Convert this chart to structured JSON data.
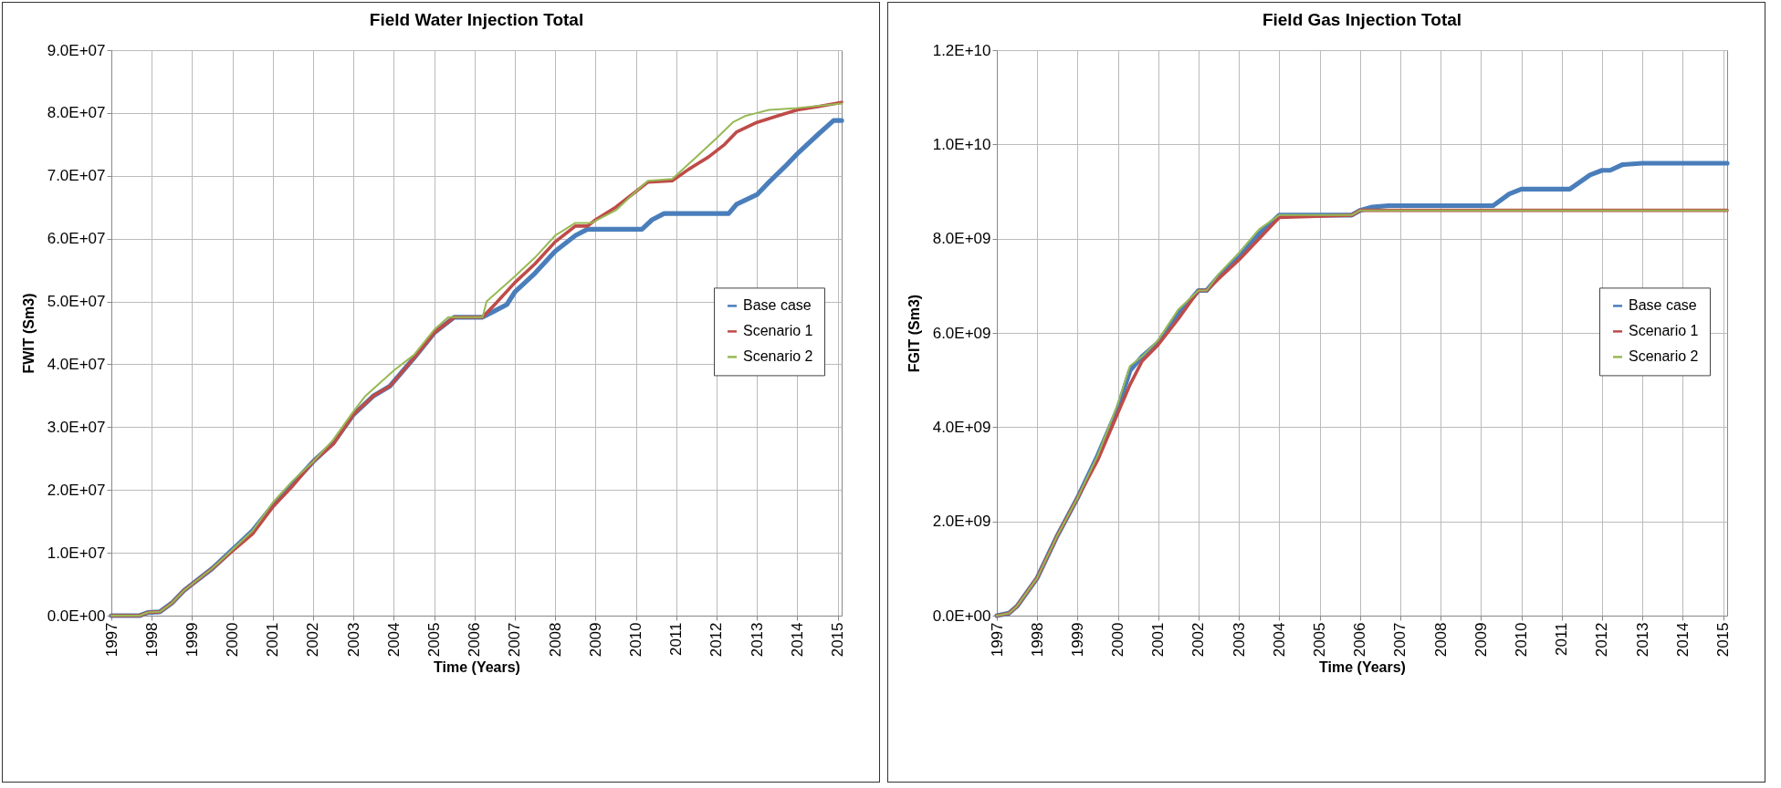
{
  "chart_data": [
    {
      "type": "line",
      "title": "Field Water Injection Total",
      "xlabel": "Time (Years)",
      "ylabel": "FWIT (Sm3)",
      "xlim": [
        1997,
        2015.1
      ],
      "xticks": [
        1997,
        1998,
        1999,
        2000,
        2001,
        2002,
        2003,
        2004,
        2005,
        2006,
        2007,
        2008,
        2009,
        2010,
        2011,
        2012,
        2013,
        2014,
        2015
      ],
      "ylim": [
        0,
        90000000
      ],
      "yticks": [
        {
          "value": 0,
          "label": "0.0E+00"
        },
        {
          "value": 10000000,
          "label": "1.0E+07"
        },
        {
          "value": 20000000,
          "label": "2.0E+07"
        },
        {
          "value": 30000000,
          "label": "3.0E+07"
        },
        {
          "value": 40000000,
          "label": "4.0E+07"
        },
        {
          "value": 50000000,
          "label": "5.0E+07"
        },
        {
          "value": 60000000,
          "label": "6.0E+07"
        },
        {
          "value": 70000000,
          "label": "7.0E+07"
        },
        {
          "value": 80000000,
          "label": "8.0E+07"
        },
        {
          "value": 90000000,
          "label": "9.0E+07"
        }
      ],
      "grid": true,
      "legend": "right",
      "series": [
        {
          "name": "Base case",
          "color": "#4a7ebb",
          "x": [
            1997,
            1997.7,
            1997.9,
            1998.2,
            1998.5,
            1998.8,
            1999,
            1999.5,
            2000,
            2000.5,
            2001,
            2001.5,
            2002,
            2002.5,
            2003,
            2003.5,
            2003.9,
            2004.5,
            2005,
            2005.5,
            2006.2,
            2006.5,
            2006.8,
            2007,
            2007.5,
            2008,
            2008.5,
            2008.8,
            2010.15,
            2010.4,
            2010.7,
            2012.3,
            2012.5,
            2013,
            2013.3,
            2013.7,
            2014,
            2014.5,
            2014.9,
            2015.1
          ],
          "values": [
            0,
            0,
            500000,
            600000,
            2000000,
            4000000,
            5000000,
            7500000,
            10500000,
            13500000,
            17500000,
            21000000,
            24500000,
            27500000,
            32000000,
            35000000,
            36500000,
            41000000,
            45000000,
            47500000,
            47500000,
            48500000,
            49500000,
            51500000,
            54500000,
            58000000,
            60500000,
            61500000,
            61500000,
            63000000,
            64000000,
            64000000,
            65500000,
            67000000,
            69000000,
            71500000,
            73500000,
            76500000,
            78800000,
            78800000
          ]
        },
        {
          "name": "Scenario 1",
          "color": "#be4b48",
          "x": [
            1997,
            1997.7,
            1997.9,
            1998.2,
            1998.5,
            1998.8,
            1999,
            1999.5,
            2000,
            2000.5,
            2001,
            2001.5,
            2002,
            2002.5,
            2003,
            2003.5,
            2003.9,
            2004.5,
            2005,
            2005.5,
            2006.2,
            2006.5,
            2007,
            2007.5,
            2008,
            2008.5,
            2008.8,
            2009,
            2009.5,
            2010,
            2010.3,
            2010.9,
            2011.3,
            2011.8,
            2012.2,
            2012.5,
            2013,
            2013.5,
            2014,
            2014.5,
            2015.1
          ],
          "values": [
            0,
            0,
            500000,
            600000,
            2000000,
            4000000,
            5000000,
            7500000,
            10300000,
            13000000,
            17300000,
            20700000,
            24500000,
            27300000,
            32000000,
            35000000,
            36500000,
            41000000,
            45000000,
            47500000,
            47500000,
            49500000,
            53000000,
            56000000,
            59500000,
            62000000,
            62000000,
            63000000,
            65000000,
            67500000,
            69000000,
            69200000,
            71000000,
            73000000,
            75000000,
            77000000,
            78500000,
            79500000,
            80500000,
            81000000,
            81700000
          ]
        },
        {
          "name": "Scenario 2",
          "color": "#98b954",
          "x": [
            1997,
            1997.7,
            1997.9,
            1998.2,
            1998.5,
            1998.8,
            1999,
            1999.5,
            2000,
            2000.5,
            2001,
            2001.5,
            2002,
            2002.5,
            2003,
            2003.3,
            2004,
            2004.5,
            2005,
            2005.35,
            2006.2,
            2006.3,
            2007,
            2007.5,
            2008,
            2008.5,
            2008.9,
            2009.5,
            2010,
            2010.3,
            2010.9,
            2011.5,
            2012,
            2012.4,
            2012.7,
            2013,
            2013.3,
            2014,
            2015.1
          ],
          "values": [
            0,
            0,
            500000,
            600000,
            2000000,
            4000000,
            5000000,
            7500000,
            10500000,
            13500000,
            18000000,
            21500000,
            24500000,
            28000000,
            32500000,
            35000000,
            39000000,
            41500000,
            45500000,
            47500000,
            47500000,
            50000000,
            54000000,
            57000000,
            60500000,
            62500000,
            62500000,
            64500000,
            67500000,
            69200000,
            69500000,
            73000000,
            76000000,
            78500000,
            79500000,
            80000000,
            80500000,
            80800000,
            81500000
          ]
        }
      ]
    },
    {
      "type": "line",
      "title": "Field Gas Injection Total",
      "xlabel": "Time (Years)",
      "ylabel": "FGIT (Sm3)",
      "xlim": [
        1997,
        2015.1
      ],
      "xticks": [
        1997,
        1998,
        1999,
        2000,
        2001,
        2002,
        2003,
        2004,
        2005,
        2006,
        2007,
        2008,
        2009,
        2010,
        2011,
        2012,
        2013,
        2014,
        2015
      ],
      "ylim": [
        0,
        12000000000
      ],
      "yticks": [
        {
          "value": 0,
          "label": "0.0E+00"
        },
        {
          "value": 2000000000,
          "label": "2.0E+09"
        },
        {
          "value": 4000000000,
          "label": "4.0E+09"
        },
        {
          "value": 6000000000,
          "label": "6.0E+09"
        },
        {
          "value": 8000000000,
          "label": "8.0E+09"
        },
        {
          "value": 10000000000,
          "label": "1.0E+10"
        },
        {
          "value": 12000000000,
          "label": "1.2E+10"
        }
      ],
      "grid": true,
      "legend": "right",
      "series": [
        {
          "name": "Base case",
          "color": "#4a7ebb",
          "x": [
            1997,
            1997.3,
            1997.5,
            1998,
            1998.5,
            1999,
            1999.5,
            2000,
            2000.3,
            2000.6,
            2001,
            2001.5,
            2002,
            2002.2,
            2002.5,
            2003,
            2003.5,
            2004,
            2005.8,
            2006,
            2006.3,
            2006.7,
            2009.3,
            2009.7,
            2010,
            2011.2,
            2011.7,
            2012,
            2012.2,
            2012.5,
            2013,
            2015.1
          ],
          "values": [
            0,
            50000000,
            200000000,
            800000000,
            1700000000,
            2500000000,
            3400000000,
            4400000000,
            5200000000,
            5500000000,
            5800000000,
            6400000000,
            6900000000,
            6900000000,
            7200000000,
            7600000000,
            8100000000,
            8500000000,
            8500000000,
            8600000000,
            8670000000,
            8700000000,
            8700000000,
            8950000000,
            9050000000,
            9050000000,
            9350000000,
            9450000000,
            9450000000,
            9570000000,
            9600000000,
            9600000000
          ]
        },
        {
          "name": "Scenario 1",
          "color": "#be4b48",
          "x": [
            1997,
            1997.3,
            1997.5,
            1998,
            1998.5,
            1999,
            1999.5,
            2000,
            2000.3,
            2000.6,
            2001,
            2001.5,
            2002,
            2002.2,
            2002.5,
            2003,
            2003.5,
            2004,
            2005.8,
            2006,
            2015.1
          ],
          "values": [
            0,
            50000000,
            200000000,
            800000000,
            1700000000,
            2500000000,
            3300000000,
            4300000000,
            4900000000,
            5400000000,
            5750000000,
            6300000000,
            6900000000,
            6900000000,
            7150000000,
            7550000000,
            8000000000,
            8450000000,
            8500000000,
            8600000000,
            8600000000
          ]
        },
        {
          "name": "Scenario 2",
          "color": "#98b954",
          "x": [
            1997,
            1997.3,
            1997.5,
            1998,
            1998.5,
            1999,
            1999.5,
            2000,
            2000.3,
            2000.6,
            2001,
            2001.5,
            2002,
            2002.2,
            2002.5,
            2003,
            2003.5,
            2004,
            2005.8,
            2006,
            2015.1
          ],
          "values": [
            0,
            50000000,
            200000000,
            800000000,
            1700000000,
            2500000000,
            3400000000,
            4500000000,
            5300000000,
            5500000000,
            5850000000,
            6500000000,
            6900000000,
            6900000000,
            7250000000,
            7700000000,
            8200000000,
            8500000000,
            8500000000,
            8600000000,
            8600000000
          ]
        }
      ]
    }
  ]
}
